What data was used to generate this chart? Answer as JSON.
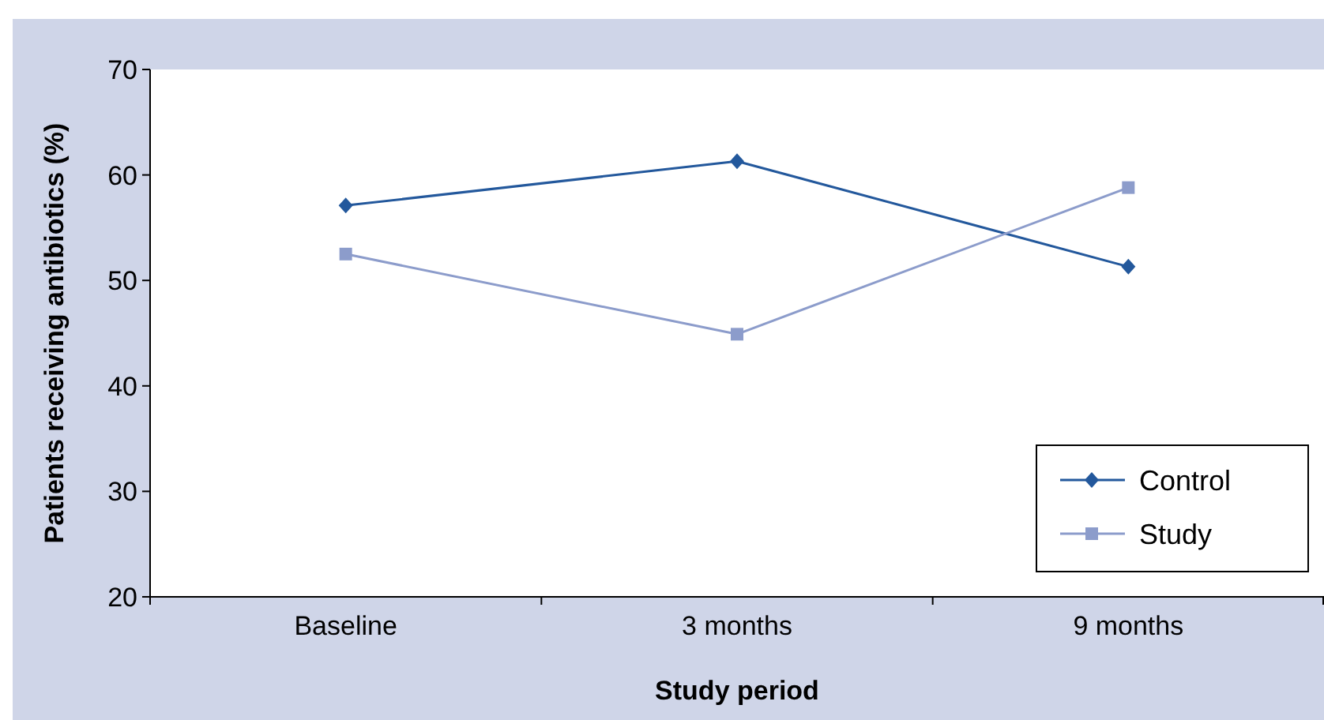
{
  "chart_data": {
    "type": "line",
    "xlabel": "Study period",
    "ylabel": "Patients receiving antibiotics (%)",
    "categories": [
      "Baseline",
      "3 months",
      "9 months"
    ],
    "series": [
      {
        "name": "Control",
        "color": "#23589c",
        "marker": "diamond",
        "values": [
          57.1,
          61.3,
          51.3
        ]
      },
      {
        "name": "Study",
        "color": "#8c9ccb",
        "marker": "square",
        "values": [
          52.5,
          44.9,
          58.8
        ]
      }
    ],
    "ylim": [
      20,
      70
    ],
    "yticks": [
      20,
      30,
      40,
      50,
      60,
      70
    ],
    "grid": false,
    "legend": "bottom right",
    "line_style": "solid"
  }
}
